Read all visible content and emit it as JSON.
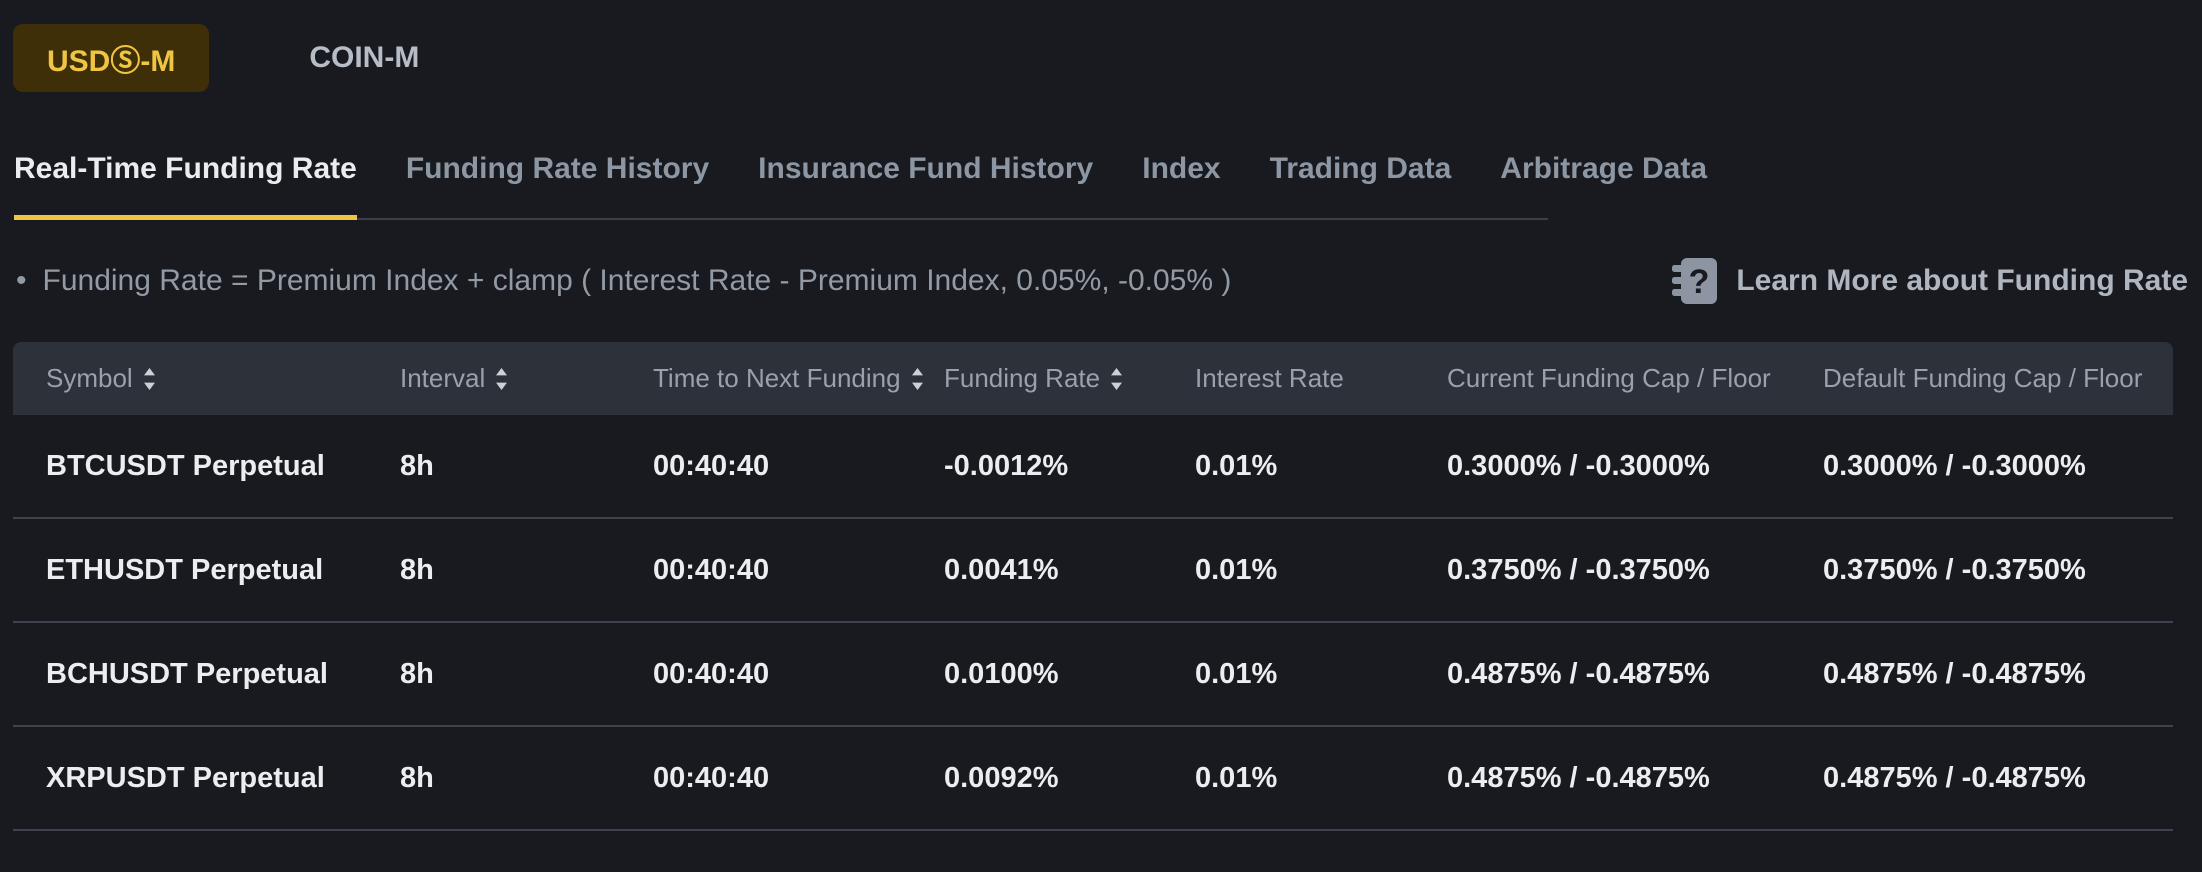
{
  "colors": {
    "accent": "#f0c541",
    "background": "#181a20",
    "header_background": "#2c313a",
    "text_primary": "#ebedf0",
    "text_secondary": "#8d96a3"
  },
  "market_tabs": {
    "usdm": "USDⓈ-M",
    "coinm": "COIN-M"
  },
  "nav_tabs": [
    {
      "label": "Real-Time Funding Rate",
      "active": true
    },
    {
      "label": "Funding Rate History",
      "active": false
    },
    {
      "label": "Insurance Fund History",
      "active": false
    },
    {
      "label": "Index",
      "active": false
    },
    {
      "label": "Trading Data",
      "active": false
    },
    {
      "label": "Arbitrage Data",
      "active": false
    }
  ],
  "formula": {
    "bullet": "•",
    "text": "Funding Rate = Premium Index + clamp ( Interest Rate - Premium Index, 0.05%, -0.05% )"
  },
  "learn_more": {
    "icon": "book-question-icon",
    "label": "Learn More about Funding Rate"
  },
  "table": {
    "columns": [
      {
        "label": "Symbol",
        "field": "symbol",
        "sortable": true
      },
      {
        "label": "Interval",
        "field": "interval",
        "sortable": true
      },
      {
        "label": "Time to Next Funding",
        "field": "time_to_next_funding",
        "sortable": true
      },
      {
        "label": "Funding Rate",
        "field": "funding_rate",
        "sortable": true
      },
      {
        "label": "Interest Rate",
        "field": "interest_rate",
        "sortable": false
      },
      {
        "label": "Current Funding Cap / Floor",
        "field": "current_cap_floor",
        "sortable": false
      },
      {
        "label": "Default Funding Cap / Floor",
        "field": "default_cap_floor",
        "sortable": false
      }
    ],
    "rows": [
      {
        "symbol": "BTCUSDT Perpetual",
        "interval": "8h",
        "time_to_next_funding": "00:40:40",
        "funding_rate": "-0.0012%",
        "interest_rate": "0.01%",
        "current_cap_floor": "0.3000% / -0.3000%",
        "default_cap_floor": "0.3000% / -0.3000%"
      },
      {
        "symbol": "ETHUSDT Perpetual",
        "interval": "8h",
        "time_to_next_funding": "00:40:40",
        "funding_rate": "0.0041%",
        "interest_rate": "0.01%",
        "current_cap_floor": "0.3750% / -0.3750%",
        "default_cap_floor": "0.3750% / -0.3750%"
      },
      {
        "symbol": "BCHUSDT Perpetual",
        "interval": "8h",
        "time_to_next_funding": "00:40:40",
        "funding_rate": "0.0100%",
        "interest_rate": "0.01%",
        "current_cap_floor": "0.4875% / -0.4875%",
        "default_cap_floor": "0.4875% / -0.4875%"
      },
      {
        "symbol": "XRPUSDT Perpetual",
        "interval": "8h",
        "time_to_next_funding": "00:40:40",
        "funding_rate": "0.0092%",
        "interest_rate": "0.01%",
        "current_cap_floor": "0.4875% / -0.4875%",
        "default_cap_floor": "0.4875% / -0.4875%"
      }
    ]
  }
}
